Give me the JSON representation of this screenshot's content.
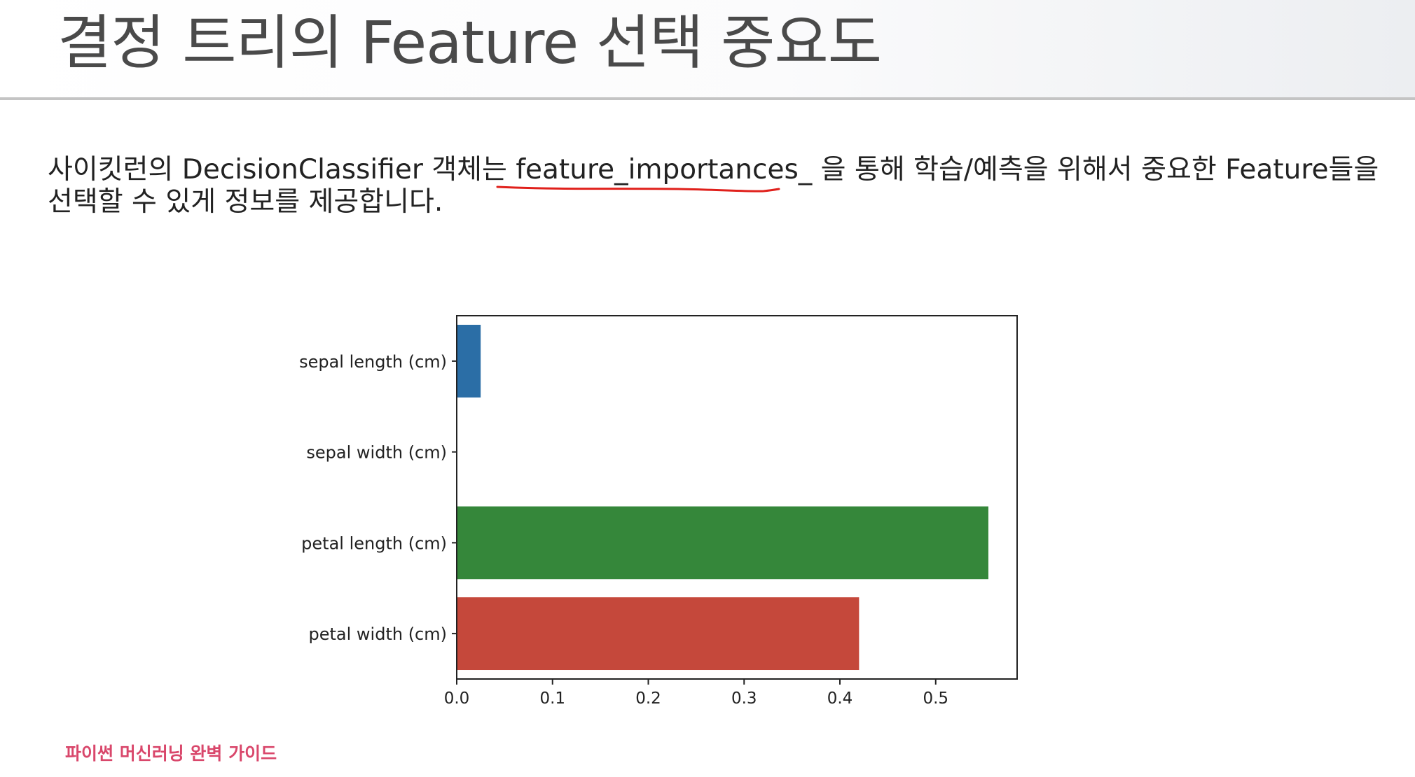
{
  "slide": {
    "title": "결정 트리의 Feature 선택 중요도",
    "body_line1_a": "사이킷런의 DecisionClassifier 객체는 ",
    "body_line1_b": "feature_importances_",
    "body_line1_c": " 을 통해 학습/예측을 위해서 중요한 Feature들을",
    "body_line2": "선택할 수 있게 정보를 제공합니다.",
    "footer": "파이썬 머신러닝 완벽 가이드",
    "colors": {
      "underline": "#e0201b",
      "footer": "#d9476b"
    }
  },
  "chart_data": {
    "type": "bar",
    "orientation": "horizontal",
    "categories": [
      "sepal length (cm)",
      "sepal width (cm)",
      "petal length (cm)",
      "petal width (cm)"
    ],
    "values": [
      0.025,
      0.0,
      0.555,
      0.42
    ],
    "colors": [
      "#2b6ea6",
      "#e08a2c",
      "#35873a",
      "#c5483b"
    ],
    "xticks": [
      "0.0",
      "0.1",
      "0.2",
      "0.3",
      "0.4",
      "0.5"
    ],
    "xlim": [
      0,
      0.585
    ],
    "grid": false
  }
}
